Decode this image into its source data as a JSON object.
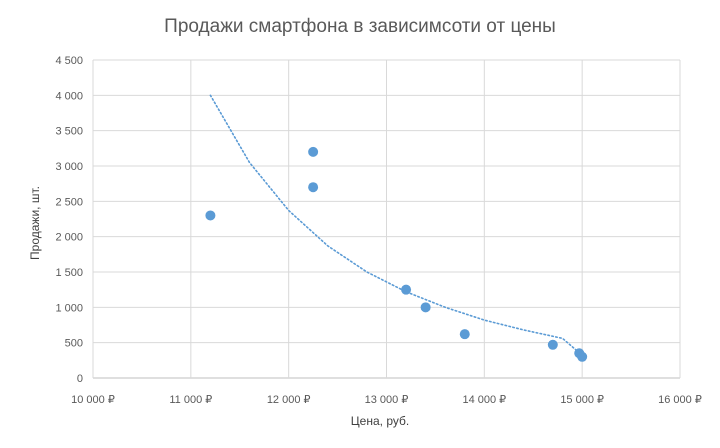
{
  "chart_data": {
    "type": "scatter",
    "title": "Продажи смартфона в зависимсоти от цены",
    "xlabel": "Цена, руб.",
    "ylabel": "Продажи, шт.",
    "xlim": [
      10000,
      16000
    ],
    "ylim": [
      0,
      4500
    ],
    "x_ticks": [
      10000,
      11000,
      12000,
      13000,
      14000,
      15000,
      16000
    ],
    "x_tick_labels": [
      "10 000 ₽",
      "11 000 ₽",
      "12 000 ₽",
      "13 000 ₽",
      "14 000 ₽",
      "15 000 ₽",
      "16 000 ₽"
    ],
    "y_ticks": [
      0,
      500,
      1000,
      1500,
      2000,
      2500,
      3000,
      3500,
      4000,
      4500
    ],
    "y_tick_labels": [
      "0",
      "500",
      "1 000",
      "1 500",
      "2 000",
      "2 500",
      "3 000",
      "3 500",
      "4 000",
      "4 500"
    ],
    "grid": true,
    "legend": "none",
    "series": [
      {
        "x": [
          11200,
          12250,
          12250,
          13200,
          13400,
          13800,
          14700,
          14970,
          15000
        ],
        "y": [
          2300,
          3200,
          2700,
          1250,
          1000,
          620,
          470,
          350,
          300
        ],
        "color": "#5b9bd5"
      }
    ],
    "trendline": {
      "type": "power",
      "color": "#5b9bd5",
      "style": "dotted",
      "x": [
        11200,
        11600,
        12000,
        12400,
        12800,
        13200,
        13600,
        14000,
        14400,
        14800,
        15000
      ],
      "y": [
        4000,
        3050,
        2370,
        1870,
        1500,
        1220,
        1000,
        820,
        680,
        560,
        320
      ]
    }
  }
}
